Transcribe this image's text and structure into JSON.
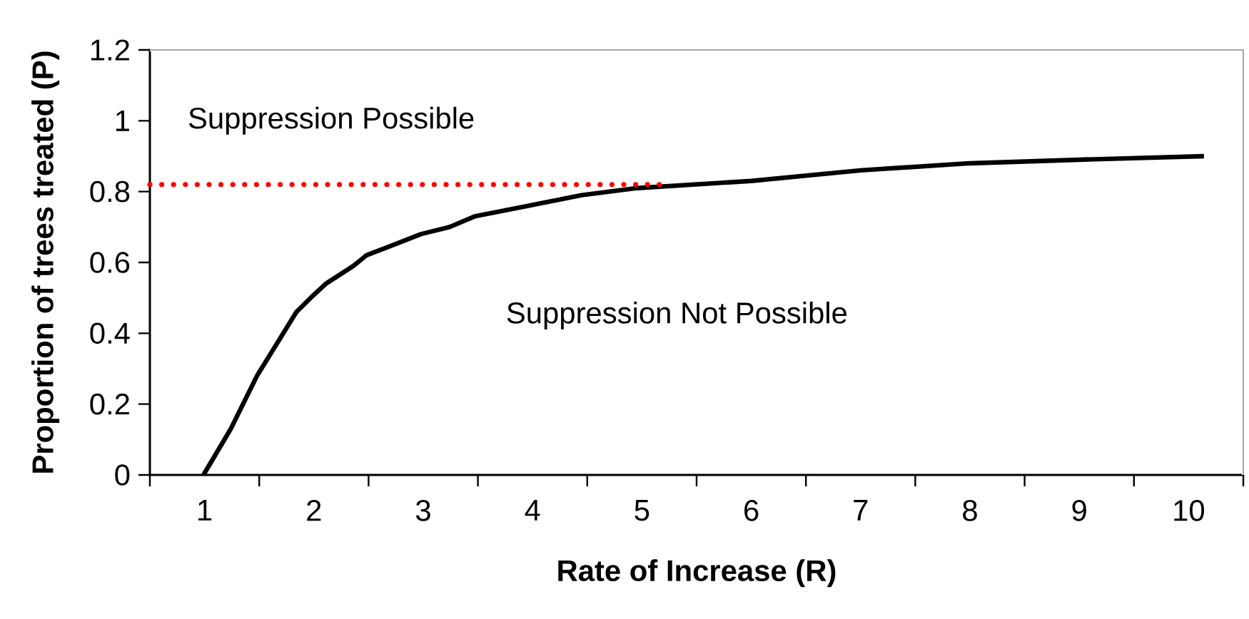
{
  "chart_data": {
    "type": "line",
    "xlabel": "Rate of Increase (R)",
    "ylabel": "Proportion of trees treated (P)",
    "annotations": [
      "Suppression Possible",
      "Suppression Not Possible"
    ],
    "series": [
      {
        "color": "#000000",
        "line_style": "solid",
        "x": [
          0.99,
          1.24,
          1.48,
          1.6,
          1.84,
          1.97,
          2.11,
          2.36,
          2.48,
          2.73,
          2.98,
          3.24,
          3.47,
          3.96,
          4.45,
          4.96,
          6,
          7,
          8,
          9,
          10.14
        ],
        "values": [
          0,
          0.13,
          0.28,
          0.34,
          0.46,
          0.5,
          0.54,
          0.59,
          0.62,
          0.65,
          0.68,
          0.7,
          0.73,
          0.76,
          0.79,
          0.81,
          0.83,
          0.86,
          0.88,
          0.89,
          0.9
        ]
      },
      {
        "color": "#ff0000",
        "line_style": "dotted",
        "x": [
          0.5,
          5.16
        ],
        "values": [
          0.82,
          0.82
        ]
      }
    ],
    "xlim": [
      0.5,
      10.5
    ],
    "ylim": [
      0,
      1.2
    ],
    "xticks": [
      {
        "value": 0.5,
        "label": null
      },
      1,
      {
        "value": 1.5,
        "label": null
      },
      2,
      {
        "value": 2.5,
        "label": null
      },
      3,
      {
        "value": 3.5,
        "label": null
      },
      4,
      {
        "value": 4.5,
        "label": null
      },
      5,
      {
        "value": 5.5,
        "label": null
      },
      6,
      {
        "value": 6.5,
        "label": null
      },
      7,
      {
        "value": 7.5,
        "label": null
      },
      8,
      {
        "value": 8.5,
        "label": null
      },
      9,
      {
        "value": 9.5,
        "label": null
      },
      10,
      {
        "value": 10.5,
        "label": null
      }
    ],
    "yticks": [
      0,
      0.2,
      0.4,
      0.6,
      0.8,
      1,
      1.2
    ],
    "grid": false,
    "marker": "none"
  }
}
